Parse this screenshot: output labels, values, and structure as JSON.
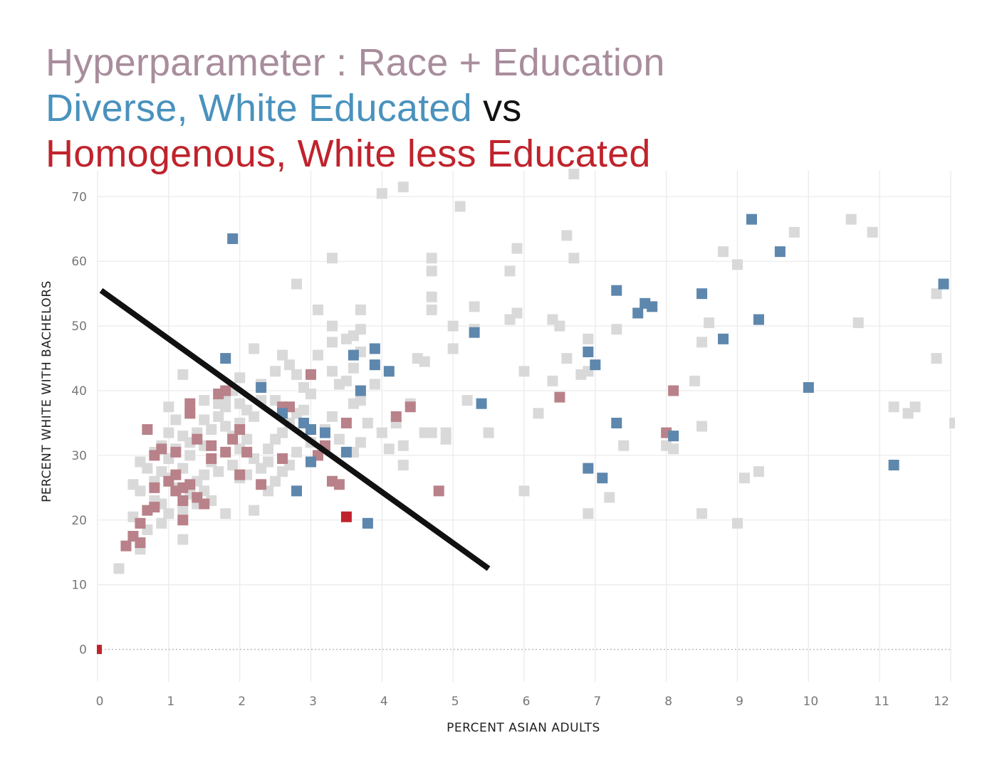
{
  "titles": {
    "line1": "Hyperparameter : Race + Education",
    "line2_part1": "Diverse, White Educated",
    "line2_part2": " vs",
    "line3": "Homogenous, White less Educated"
  },
  "colors": {
    "title_line1": "#a88d9c",
    "title_blue": "#4a92bd",
    "title_vs": "#111111",
    "title_red": "#c0232c",
    "grey_points": "#d9d9d9",
    "pink_points": "#b98189",
    "blue_points": "#5e87ad",
    "red_points": "#c0232c",
    "separator_line": "#111111",
    "grid": "#ebebeb"
  },
  "chart_data": {
    "type": "scatter",
    "xlabel": "PERCENT ASIAN ADULTS",
    "ylabel": "PERCENT WHITE WITH BACHELORS",
    "xlim": [
      0,
      12
    ],
    "ylim": [
      -5,
      74
    ],
    "x_ticks": [
      0,
      1,
      2,
      3,
      4,
      5,
      6,
      7,
      8,
      9,
      10,
      11,
      12
    ],
    "y_ticks": [
      0,
      10,
      20,
      30,
      40,
      50,
      60,
      70
    ],
    "grid": true,
    "reference_line": {
      "y": 0,
      "style": "dotted"
    },
    "separator_line": {
      "x1": 0.05,
      "y1": 55.5,
      "x2": 5.5,
      "y2": 12.5
    },
    "series": [
      {
        "group": "other",
        "color": "#d9d9d9",
        "points": [
          [
            0.3,
            12.5
          ],
          [
            0.6,
            15.5
          ],
          [
            0.5,
            20.5
          ],
          [
            0.7,
            18.5
          ],
          [
            0.9,
            19.5
          ],
          [
            0.9,
            22.5
          ],
          [
            1.0,
            21.0
          ],
          [
            0.8,
            23.0
          ],
          [
            0.6,
            24.5
          ],
          [
            0.5,
            25.5
          ],
          [
            0.8,
            26.0
          ],
          [
            1.0,
            26.5
          ],
          [
            1.1,
            25.0
          ],
          [
            0.9,
            27.5
          ],
          [
            0.7,
            28.0
          ],
          [
            1.0,
            29.5
          ],
          [
            1.2,
            28.0
          ],
          [
            1.3,
            30.0
          ],
          [
            1.1,
            31.0
          ],
          [
            0.9,
            31.5
          ],
          [
            1.0,
            33.5
          ],
          [
            1.2,
            33.0
          ],
          [
            1.3,
            32.0
          ],
          [
            1.5,
            31.5
          ],
          [
            1.4,
            33.5
          ],
          [
            1.6,
            34.0
          ],
          [
            1.3,
            36.5
          ],
          [
            1.5,
            35.5
          ],
          [
            1.7,
            36.0
          ],
          [
            1.0,
            37.5
          ],
          [
            1.2,
            42.5
          ],
          [
            1.8,
            39.0
          ],
          [
            1.9,
            40.0
          ],
          [
            2.0,
            42.0
          ],
          [
            2.0,
            38.0
          ],
          [
            1.7,
            38.0
          ],
          [
            2.1,
            37.0
          ],
          [
            2.2,
            36.0
          ],
          [
            2.3,
            38.5
          ],
          [
            1.8,
            34.5
          ],
          [
            1.9,
            33.0
          ],
          [
            2.0,
            31.0
          ],
          [
            2.1,
            32.5
          ],
          [
            2.2,
            29.5
          ],
          [
            2.4,
            31.0
          ],
          [
            2.3,
            28.0
          ],
          [
            2.1,
            27.0
          ],
          [
            2.0,
            26.5
          ],
          [
            1.9,
            28.5
          ],
          [
            1.7,
            27.5
          ],
          [
            1.6,
            29.0
          ],
          [
            1.5,
            27.0
          ],
          [
            1.4,
            26.0
          ],
          [
            1.3,
            24.0
          ],
          [
            1.5,
            24.5
          ],
          [
            1.6,
            23.0
          ],
          [
            1.4,
            22.5
          ],
          [
            1.2,
            21.5
          ],
          [
            1.8,
            21.0
          ],
          [
            1.2,
            17.0
          ],
          [
            2.2,
            21.5
          ],
          [
            2.4,
            24.5
          ],
          [
            2.5,
            26.0
          ],
          [
            2.6,
            27.5
          ],
          [
            2.7,
            28.5
          ],
          [
            2.8,
            30.5
          ],
          [
            2.5,
            32.5
          ],
          [
            2.6,
            33.5
          ],
          [
            2.7,
            35.0
          ],
          [
            2.8,
            36.5
          ],
          [
            2.5,
            38.5
          ],
          [
            2.3,
            41.0
          ],
          [
            2.2,
            46.5
          ],
          [
            2.5,
            43.0
          ],
          [
            2.6,
            45.5
          ],
          [
            2.7,
            44.0
          ],
          [
            2.8,
            42.5
          ],
          [
            2.9,
            40.5
          ],
          [
            3.0,
            39.5
          ],
          [
            2.8,
            56.5
          ],
          [
            3.1,
            52.5
          ],
          [
            3.3,
            50.0
          ],
          [
            3.3,
            47.5
          ],
          [
            3.3,
            43.0
          ],
          [
            3.4,
            41.0
          ],
          [
            3.5,
            41.5
          ],
          [
            3.6,
            38.0
          ],
          [
            3.3,
            36.0
          ],
          [
            3.2,
            34.0
          ],
          [
            3.4,
            32.5
          ],
          [
            3.6,
            30.5
          ],
          [
            3.7,
            32.0
          ],
          [
            3.8,
            35.0
          ],
          [
            3.7,
            38.5
          ],
          [
            3.9,
            41.0
          ],
          [
            3.6,
            43.5
          ],
          [
            3.7,
            46.0
          ],
          [
            3.6,
            48.5
          ],
          [
            3.7,
            49.5
          ],
          [
            3.7,
            52.5
          ],
          [
            3.3,
            60.5
          ],
          [
            4.0,
            70.5
          ],
          [
            4.3,
            71.5
          ],
          [
            4.0,
            33.5
          ],
          [
            4.1,
            31.0
          ],
          [
            4.2,
            35.0
          ],
          [
            4.3,
            31.5
          ],
          [
            4.3,
            28.5
          ],
          [
            4.4,
            38.0
          ],
          [
            4.5,
            45.0
          ],
          [
            4.6,
            44.5
          ],
          [
            4.6,
            33.5
          ],
          [
            4.7,
            60.5
          ],
          [
            4.7,
            58.5
          ],
          [
            4.7,
            54.5
          ],
          [
            4.7,
            52.5
          ],
          [
            4.7,
            33.5
          ],
          [
            4.9,
            33.5
          ],
          [
            4.9,
            32.5
          ],
          [
            5.0,
            50.0
          ],
          [
            5.0,
            46.5
          ],
          [
            5.1,
            68.5
          ],
          [
            5.2,
            38.5
          ],
          [
            5.3,
            53.0
          ],
          [
            5.3,
            49.5
          ],
          [
            5.5,
            33.5
          ],
          [
            5.8,
            58.5
          ],
          [
            5.8,
            51.0
          ],
          [
            5.9,
            62.0
          ],
          [
            5.9,
            52.0
          ],
          [
            6.0,
            43.0
          ],
          [
            6.0,
            24.5
          ],
          [
            6.2,
            36.5
          ],
          [
            6.4,
            51.0
          ],
          [
            6.5,
            50.0
          ],
          [
            6.4,
            41.5
          ],
          [
            6.6,
            45.0
          ],
          [
            6.6,
            64.0
          ],
          [
            6.7,
            60.5
          ],
          [
            6.7,
            73.5
          ],
          [
            6.8,
            42.5
          ],
          [
            6.9,
            43.0
          ],
          [
            6.9,
            48.0
          ],
          [
            6.9,
            21.0
          ],
          [
            7.2,
            23.5
          ],
          [
            7.3,
            49.5
          ],
          [
            7.4,
            31.5
          ],
          [
            8.0,
            31.5
          ],
          [
            8.1,
            31.0
          ],
          [
            8.4,
            41.5
          ],
          [
            8.5,
            47.5
          ],
          [
            8.6,
            50.5
          ],
          [
            8.5,
            34.5
          ],
          [
            8.5,
            21.0
          ],
          [
            8.8,
            61.5
          ],
          [
            9.0,
            59.5
          ],
          [
            9.0,
            19.5
          ],
          [
            9.1,
            26.5
          ],
          [
            9.3,
            27.5
          ],
          [
            9.8,
            64.5
          ],
          [
            10.6,
            66.5
          ],
          [
            10.7,
            50.5
          ],
          [
            10.9,
            64.5
          ],
          [
            11.2,
            37.5
          ],
          [
            11.4,
            36.5
          ],
          [
            11.5,
            37.5
          ],
          [
            11.8,
            55.0
          ],
          [
            11.8,
            45.0
          ],
          [
            12.0,
            35.0
          ],
          [
            3.0,
            32.0
          ],
          [
            2.9,
            37.0
          ],
          [
            3.1,
            45.5
          ],
          [
            3.5,
            48.0
          ],
          [
            2.4,
            29.0
          ],
          [
            2.0,
            35.0
          ],
          [
            1.8,
            37.5
          ],
          [
            1.1,
            35.5
          ],
          [
            0.8,
            30.5
          ],
          [
            0.6,
            29.0
          ],
          [
            1.5,
            38.5
          ]
        ]
      },
      {
        "group": "Homogenous, White less Educated",
        "color": "#b98189",
        "points": [
          [
            0.4,
            16.0
          ],
          [
            0.5,
            17.5
          ],
          [
            0.6,
            16.5
          ],
          [
            0.6,
            19.5
          ],
          [
            0.7,
            21.5
          ],
          [
            0.8,
            22.0
          ],
          [
            0.8,
            25.0
          ],
          [
            1.0,
            26.0
          ],
          [
            1.1,
            24.5
          ],
          [
            1.2,
            25.0
          ],
          [
            1.1,
            27.0
          ],
          [
            1.2,
            23.0
          ],
          [
            1.3,
            25.5
          ],
          [
            1.4,
            23.5
          ],
          [
            1.5,
            22.5
          ],
          [
            1.2,
            20.0
          ],
          [
            0.7,
            34.0
          ],
          [
            0.8,
            30.0
          ],
          [
            0.9,
            31.0
          ],
          [
            1.1,
            30.5
          ],
          [
            1.3,
            38.0
          ],
          [
            1.3,
            36.5
          ],
          [
            1.4,
            32.5
          ],
          [
            1.6,
            29.5
          ],
          [
            1.6,
            31.5
          ],
          [
            1.8,
            30.5
          ],
          [
            1.9,
            32.5
          ],
          [
            2.0,
            34.0
          ],
          [
            2.1,
            30.5
          ],
          [
            1.7,
            39.5
          ],
          [
            1.8,
            40.0
          ],
          [
            2.0,
            27.0
          ],
          [
            2.3,
            25.5
          ],
          [
            2.6,
            29.5
          ],
          [
            2.6,
            37.5
          ],
          [
            2.7,
            37.5
          ],
          [
            3.0,
            42.5
          ],
          [
            3.1,
            30.0
          ],
          [
            3.2,
            31.5
          ],
          [
            3.3,
            26.0
          ],
          [
            3.4,
            25.5
          ],
          [
            3.5,
            35.0
          ],
          [
            4.2,
            36.0
          ],
          [
            4.4,
            37.5
          ],
          [
            4.8,
            24.5
          ],
          [
            6.5,
            39.0
          ],
          [
            8.0,
            33.5
          ],
          [
            8.1,
            40.0
          ]
        ]
      },
      {
        "group": "Diverse, White Educated",
        "color": "#5e87ad",
        "points": [
          [
            1.9,
            63.5
          ],
          [
            1.8,
            45.0
          ],
          [
            2.3,
            40.5
          ],
          [
            2.6,
            36.5
          ],
          [
            2.9,
            35.0
          ],
          [
            3.0,
            34.0
          ],
          [
            3.0,
            29.0
          ],
          [
            2.8,
            24.5
          ],
          [
            3.2,
            33.5
          ],
          [
            3.5,
            30.5
          ],
          [
            3.6,
            45.5
          ],
          [
            3.9,
            46.5
          ],
          [
            3.9,
            44.0
          ],
          [
            4.1,
            43.0
          ],
          [
            3.7,
            40.0
          ],
          [
            3.8,
            19.5
          ],
          [
            5.3,
            49.0
          ],
          [
            5.4,
            38.0
          ],
          [
            6.9,
            46.0
          ],
          [
            7.0,
            44.0
          ],
          [
            6.9,
            28.0
          ],
          [
            7.1,
            26.5
          ],
          [
            7.3,
            55.5
          ],
          [
            7.3,
            35.0
          ],
          [
            7.6,
            52.0
          ],
          [
            7.7,
            53.5
          ],
          [
            7.8,
            53.0
          ],
          [
            8.1,
            33.0
          ],
          [
            8.5,
            55.0
          ],
          [
            8.8,
            48.0
          ],
          [
            9.2,
            66.5
          ],
          [
            9.3,
            51.0
          ],
          [
            9.6,
            61.5
          ],
          [
            10.0,
            40.5
          ],
          [
            11.2,
            28.5
          ],
          [
            11.9,
            56.5
          ]
        ]
      },
      {
        "group": "highlight",
        "color": "#c0232c",
        "points": [
          [
            3.5,
            20.5
          ],
          [
            0.0,
            0.0
          ]
        ]
      }
    ]
  }
}
